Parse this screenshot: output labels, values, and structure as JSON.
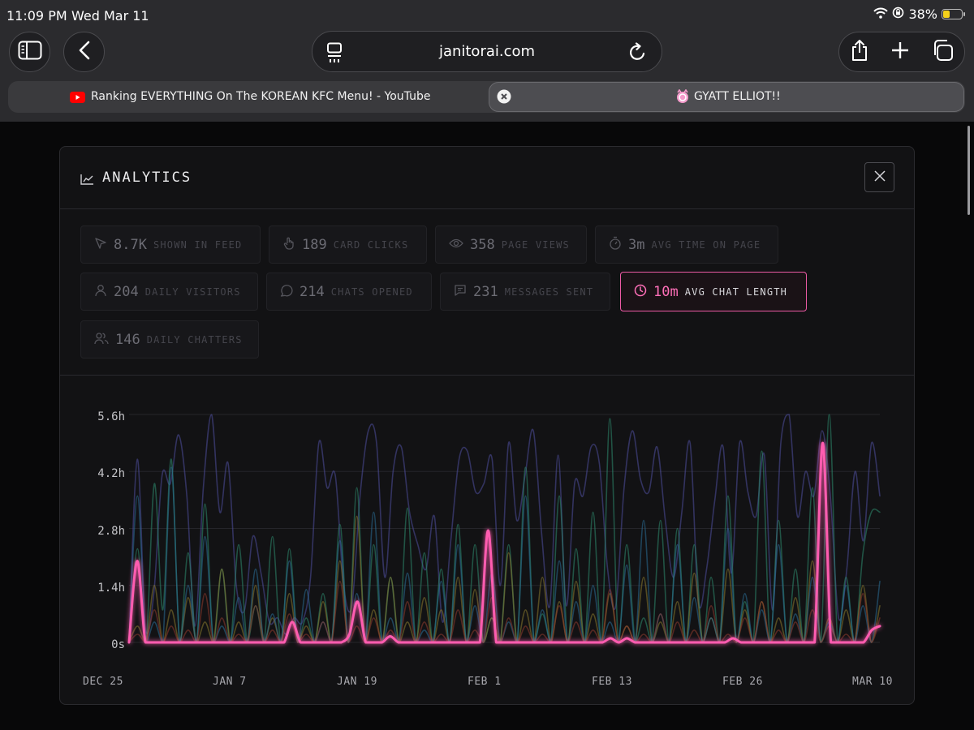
{
  "status_bar": {
    "time": "11:09 PM",
    "date": "Wed Mar 11",
    "battery": "38%",
    "battery_level": 0.38
  },
  "browser": {
    "url": "janitorai.com",
    "tabs": [
      {
        "title": "Ranking EVERYTHING On The KOREAN KFC Menu! - YouTube",
        "icon": "youtube-icon"
      },
      {
        "title": "GYATT ELLIOT!!",
        "icon": "janitor-icon",
        "active": true
      }
    ]
  },
  "modal": {
    "title": "ANALYTICS",
    "stats": [
      {
        "value": "8.7K",
        "label": "SHOWN IN FEED",
        "icon": "cursor-icon"
      },
      {
        "value": "189",
        "label": "CARD CLICKS",
        "icon": "pointer-hand-icon"
      },
      {
        "value": "358",
        "label": "PAGE VIEWS",
        "icon": "eye-icon"
      },
      {
        "value": "3m",
        "label": "AVG TIME ON PAGE",
        "icon": "stopwatch-icon"
      },
      {
        "value": "204",
        "label": "DAILY VISITORS",
        "icon": "user-icon"
      },
      {
        "value": "214",
        "label": "CHATS OPENED",
        "icon": "chat-bubble-icon"
      },
      {
        "value": "231",
        "label": "MESSAGES SENT",
        "icon": "message-square-icon"
      },
      {
        "value": "10m",
        "label": "AVG CHAT LENGTH",
        "icon": "clock-icon",
        "active": true
      },
      {
        "value": "146",
        "label": "DAILY CHATTERS",
        "icon": "users-icon"
      }
    ]
  },
  "chart_data": {
    "type": "line",
    "y_ticks": [
      "5.6h",
      "4.2h",
      "2.8h",
      "1.4h",
      "0s"
    ],
    "x_ticks": [
      "DEC 25",
      "JAN 7",
      "JAN 19",
      "FEB 1",
      "FEB 13",
      "FEB 26",
      "MAR 10"
    ],
    "ylim": [
      0,
      5.6
    ],
    "unit": "hours",
    "grid": true,
    "highlight_color": "#ff5cb0",
    "series": [
      {
        "highlighted": true,
        "values": [
          0,
          2.0,
          0,
          0,
          0,
          0,
          0,
          0,
          0,
          0,
          0,
          0,
          0,
          0,
          0,
          0,
          0,
          0,
          0,
          0,
          0.5,
          0,
          0,
          0,
          0,
          0,
          0,
          0.2,
          1.0,
          0,
          0,
          0,
          0.15,
          0,
          0,
          0,
          0,
          0,
          0,
          0,
          0,
          0,
          0,
          0,
          2.75,
          0,
          0,
          0,
          0,
          0,
          0,
          0,
          0,
          0,
          0,
          0,
          0,
          0,
          0,
          0.1,
          0,
          0.1,
          0,
          0,
          0,
          0,
          0,
          0,
          0,
          0,
          0,
          0,
          0,
          0,
          0.1,
          0,
          0,
          0,
          0,
          0,
          0,
          0,
          0,
          0,
          0,
          4.9,
          0,
          0,
          0,
          0,
          0,
          0.3,
          0.4
        ]
      },
      {
        "color": "#4e4f9e",
        "values": [
          0,
          4.5,
          0.3,
          1.2,
          4.1,
          3.9,
          5.1,
          3.6,
          0.4,
          3.8,
          5.6,
          3.2,
          4.4,
          1.4,
          0.8,
          2.6,
          1.7,
          0.5,
          0.6,
          0.2,
          0.6,
          0.5,
          1.6,
          4.9,
          3.8,
          4.1,
          1.4,
          0.9,
          3.6,
          5.2,
          4.9,
          1.6,
          4.2,
          4.8,
          3.2,
          2.4,
          1.8,
          3.1,
          0.5,
          2.5,
          4.5,
          4.7,
          3.7,
          3.9,
          4.5,
          1.4,
          4.9,
          3.0,
          4.1,
          5.2,
          2.7,
          0.9,
          4.6,
          0.9,
          3.9,
          3.6,
          4.8,
          4.4,
          1.8,
          0.9,
          3.8,
          5.2,
          4.0,
          3.7,
          4.8,
          3.0,
          1.6,
          3.2,
          4.9,
          1.0,
          1.8,
          3.5,
          4.8,
          1.7,
          4.9,
          3.7,
          3.1,
          4.6,
          0.8,
          4.9,
          5.6,
          3.1,
          4.2,
          3.6,
          5.2,
          3.6,
          0.6,
          1.8,
          4.2,
          2.5,
          4.9,
          3.6
        ]
      },
      {
        "color": "#2e8a6e",
        "values": [
          0,
          2.3,
          0,
          3.9,
          0.8,
          4.5,
          0,
          2.2,
          0,
          3.4,
          0,
          1.8,
          0,
          2.4,
          0,
          0.9,
          0,
          2.6,
          0,
          2.3,
          0,
          0.6,
          0,
          1.2,
          0,
          2.9,
          0,
          3.8,
          0,
          2.4,
          0,
          1.6,
          0,
          3.3,
          0,
          2.2,
          0,
          1.8,
          0,
          2.9,
          0,
          2.4,
          0,
          0.6,
          0,
          2.4,
          0,
          4.3,
          0,
          0.7,
          0,
          3.6,
          0,
          2.3,
          0,
          3.2,
          0,
          5.5,
          0,
          2.4,
          0,
          0.6,
          0,
          3.0,
          0,
          2.8,
          0,
          2.4,
          0,
          1.6,
          0,
          3.6,
          0,
          1.0,
          0,
          4.7,
          0,
          3.0,
          0,
          1.8,
          0,
          3.8,
          0,
          5.6,
          0,
          1.6,
          0,
          2.2,
          3.2,
          3.2
        ]
      },
      {
        "color": "#8a7a2e",
        "values": [
          0,
          0.4,
          0,
          1.4,
          0,
          0.8,
          0,
          1.1,
          0,
          0.5,
          0,
          1.8,
          0,
          0.5,
          0,
          1.4,
          0,
          0.6,
          0,
          1.2,
          0,
          0.4,
          0,
          1.0,
          0,
          2.0,
          0,
          3.1,
          0,
          0.8,
          0,
          1.6,
          0,
          0.5,
          0,
          1.1,
          0,
          0.8,
          0,
          1.6,
          0,
          1.3,
          0,
          0.6,
          0,
          2.2,
          0,
          0.8,
          0,
          1.6,
          0,
          1.0,
          0,
          1.5,
          0,
          0.7,
          0,
          1.2,
          0,
          0.4,
          0,
          1.6,
          0,
          0.5,
          0,
          1.0,
          0,
          1.7,
          0,
          0.6,
          0,
          1.8,
          0,
          0.8,
          0,
          1.0,
          0,
          0.6,
          0,
          1.1,
          0,
          2.0,
          0,
          0.6,
          0,
          0.8,
          0,
          1.4,
          0,
          0.9
        ]
      },
      {
        "color": "#2a6e96",
        "values": [
          0,
          3.6,
          0,
          0.5,
          0,
          4.3,
          0,
          1.4,
          0,
          2.6,
          0,
          0.4,
          0,
          1.1,
          0,
          1.8,
          0,
          0.7,
          0,
          2.0,
          0,
          1.3,
          0,
          0.5,
          0,
          2.5,
          0,
          1.2,
          0,
          3.2,
          0,
          0.6,
          0,
          1.7,
          0,
          0.3,
          0,
          1.5,
          0,
          2.4,
          0,
          0.9,
          0,
          1.7,
          0,
          0.5,
          0,
          3.6,
          0,
          0.8,
          0,
          2.0,
          0,
          1.0,
          0,
          1.4,
          0,
          0.5,
          0,
          1.9,
          0,
          3.0,
          0,
          0.7,
          0,
          2.4,
          0,
          1.1,
          0,
          0.6,
          0,
          2.8,
          0,
          1.2,
          0,
          0.8,
          0,
          2.4,
          0,
          0.7,
          0,
          1.6,
          0,
          0.5,
          0,
          1.4,
          0,
          0.9,
          0,
          1.5
        ]
      },
      {
        "color": "#8e3a2e",
        "values": [
          0,
          0.2,
          0,
          0.8,
          0,
          0.4,
          0,
          0.3,
          0,
          1.2,
          0,
          0.6,
          0,
          0.2,
          0,
          0.9,
          0,
          0.3,
          0,
          0.7,
          0,
          0.2,
          0,
          0.5,
          0,
          1.5,
          0,
          0.4,
          0,
          0.6,
          0,
          0.3,
          0,
          1.0,
          0,
          0.5,
          0,
          0.2,
          0,
          0.8,
          0,
          0.3,
          0,
          1.1,
          0,
          0.6,
          0,
          0.4,
          0,
          0.2,
          0,
          0.9,
          0,
          0.5,
          0,
          0.3,
          0,
          1.3,
          0,
          0.4,
          0,
          0.2,
          0,
          0.7,
          0,
          0.5,
          0,
          0.3,
          0,
          0.9,
          0,
          0.2,
          0,
          0.6,
          0,
          1.0,
          0,
          0.3,
          0,
          0.5,
          0,
          0.8,
          0,
          0.4,
          0,
          0.2,
          0,
          1.2,
          0,
          0.6
        ]
      }
    ]
  }
}
